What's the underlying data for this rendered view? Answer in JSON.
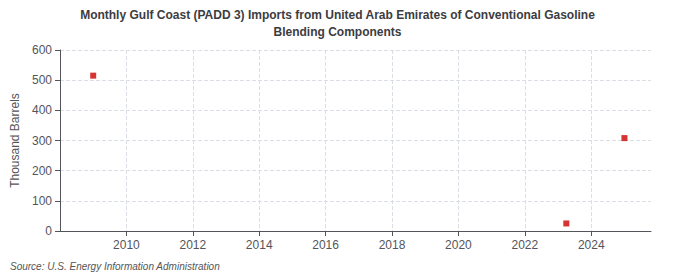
{
  "chart_data": {
    "type": "scatter",
    "title": "Monthly Gulf Coast (PADD 3) Imports from United Arab Emirates of Conventional Gasoline",
    "subtitle": "Blending Components",
    "ylabel": "Thousand Barrels",
    "annotation": "Source: U.S. Energy Information Administration",
    "x": [
      2009,
      2023.25,
      2025
    ],
    "values": [
      515,
      25,
      308
    ],
    "color": "#cc0000",
    "marker": "square",
    "xlim": [
      2008,
      2025.8
    ],
    "ylim": [
      0,
      600
    ],
    "xticks": [
      2010,
      2012,
      2014,
      2016,
      2018,
      2020,
      2022,
      2024
    ],
    "yticks": [
      0,
      100,
      200,
      300,
      400,
      500,
      600
    ],
    "grid": true
  }
}
